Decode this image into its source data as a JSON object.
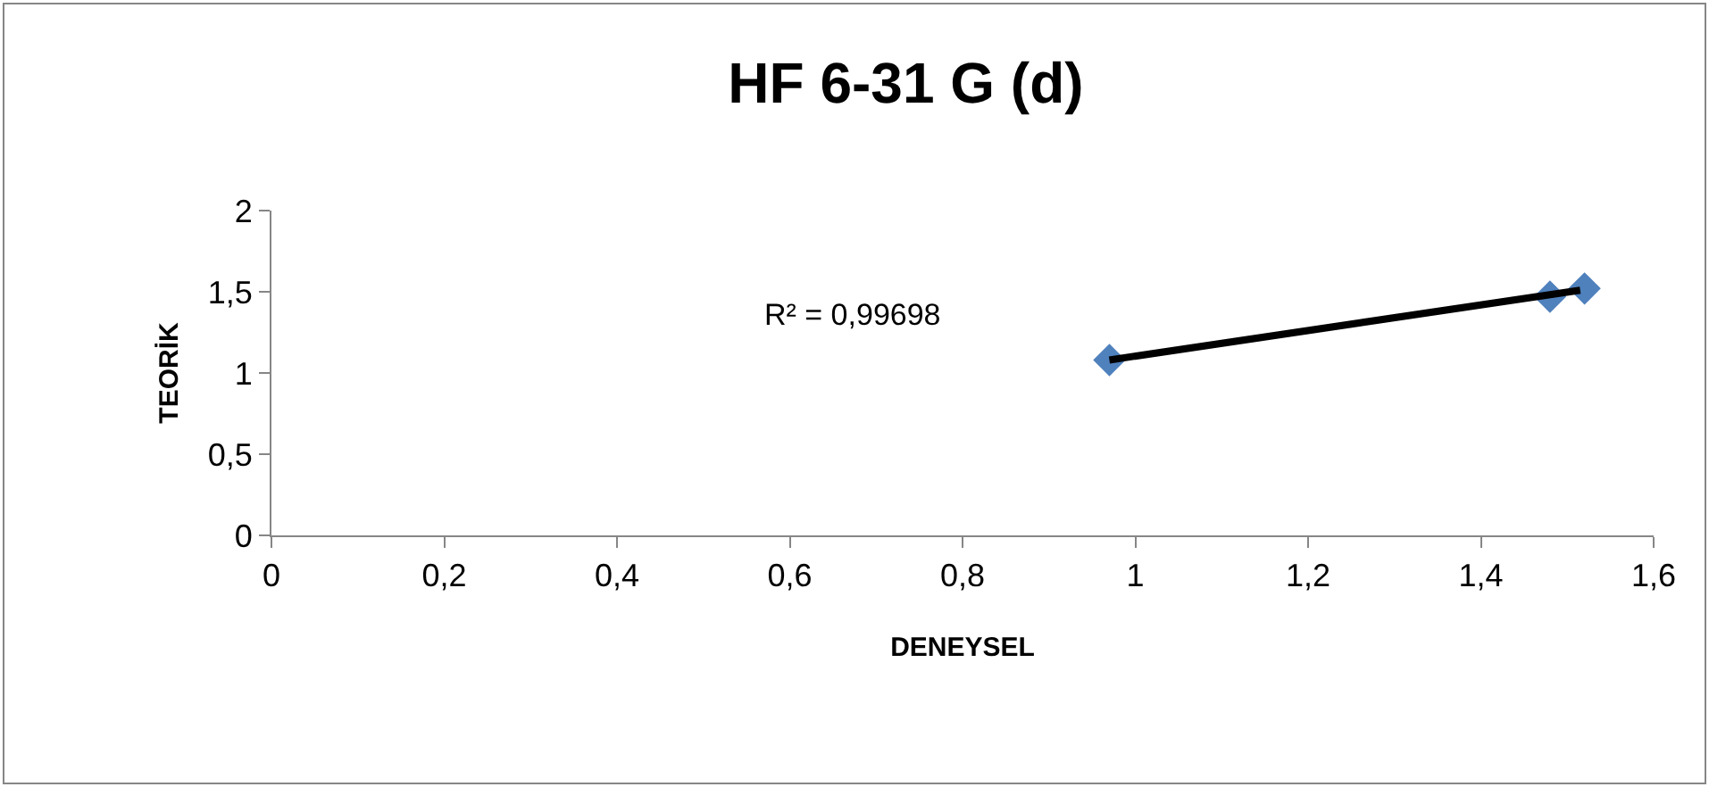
{
  "chart_data": {
    "type": "scatter",
    "title": "HF 6-31 G (d)",
    "xlabel": "DENEYSEL",
    "ylabel": "TEORİK",
    "series": [
      {
        "color": "#4f81bd",
        "x": [
          0.97,
          1.48,
          1.52
        ],
        "values": [
          1.08,
          1.47,
          1.52
        ],
        "marker": "diamond"
      },
      {
        "type": "line",
        "color": "#000000",
        "x": [
          0.97,
          1.515
        ],
        "values": [
          1.08,
          1.51
        ],
        "marker": "none",
        "line_style": "solid"
      }
    ],
    "annotations": [
      "R² = 0,99698"
    ],
    "xlim": [
      0,
      1.6
    ],
    "xticks": [
      {
        "value": 0,
        "label": "0"
      },
      {
        "value": 0.2,
        "label": "0,2"
      },
      {
        "value": 0.4,
        "label": "0,4"
      },
      {
        "value": 0.6,
        "label": "0,6"
      },
      {
        "value": 0.8,
        "label": "0,8"
      },
      {
        "value": 1,
        "label": "1"
      },
      {
        "value": 1.2,
        "label": "1,2"
      },
      {
        "value": 1.4,
        "label": "1,4"
      },
      {
        "value": 1.6,
        "label": "1,6"
      }
    ],
    "ylim": [
      0,
      2
    ],
    "yticks": [
      {
        "value": 0,
        "label": "0"
      },
      {
        "value": 0.5,
        "label": "0,5"
      },
      {
        "value": 1,
        "label": "1"
      },
      {
        "value": 1.5,
        "label": "1,5"
      },
      {
        "value": 2,
        "label": "2"
      }
    ]
  }
}
